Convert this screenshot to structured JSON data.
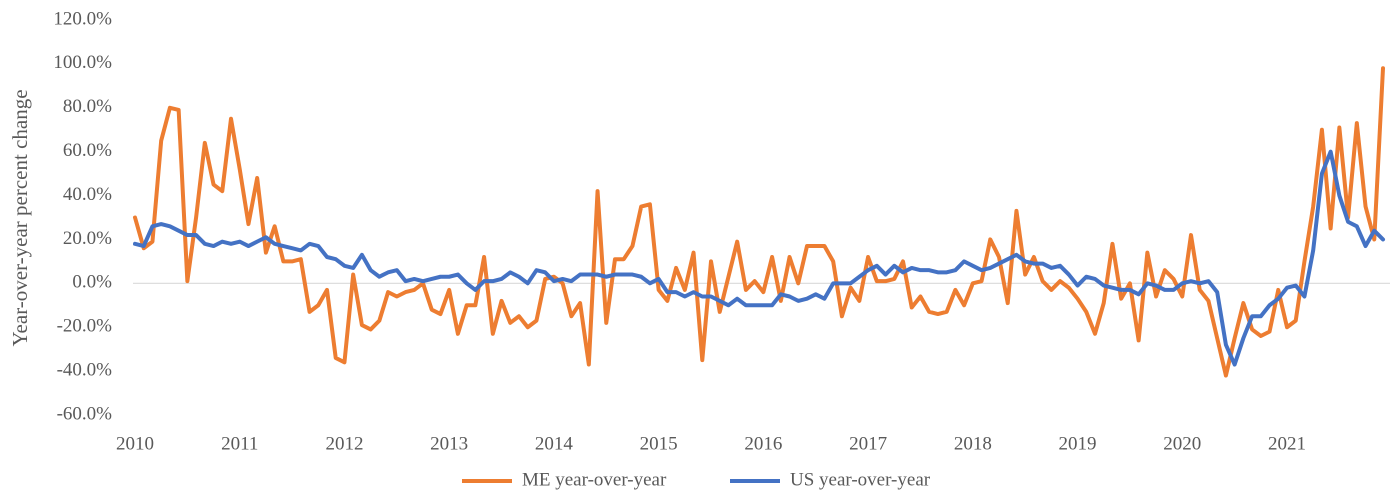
{
  "chart_data": {
    "type": "line",
    "y_label": "Year-over-year percent change",
    "categories": [
      "2010",
      null,
      null,
      null,
      null,
      null,
      null,
      null,
      null,
      null,
      null,
      null,
      "2011",
      null,
      null,
      null,
      null,
      null,
      null,
      null,
      null,
      null,
      null,
      null,
      "2012",
      null,
      null,
      null,
      null,
      null,
      null,
      null,
      null,
      null,
      null,
      null,
      "2013",
      null,
      null,
      null,
      null,
      null,
      null,
      null,
      null,
      null,
      null,
      null,
      "2014",
      null,
      null,
      null,
      null,
      null,
      null,
      null,
      null,
      null,
      null,
      null,
      "2015",
      null,
      null,
      null,
      null,
      null,
      null,
      null,
      null,
      null,
      null,
      null,
      "2016",
      null,
      null,
      null,
      null,
      null,
      null,
      null,
      null,
      null,
      null,
      null,
      "2017",
      null,
      null,
      null,
      null,
      null,
      null,
      null,
      null,
      null,
      null,
      null,
      "2018",
      null,
      null,
      null,
      null,
      null,
      null,
      null,
      null,
      null,
      null,
      null,
      "2019",
      null,
      null,
      null,
      null,
      null,
      null,
      null,
      null,
      null,
      null,
      null,
      "2020",
      null,
      null,
      null,
      null,
      null,
      null,
      null,
      null,
      null,
      null,
      null,
      "2021",
      null,
      null,
      null,
      null,
      null,
      null,
      null,
      null,
      null,
      null,
      null
    ],
    "series": [
      {
        "name": "ME year-over-year",
        "color": "#ED7D31",
        "values": [
          30,
          16,
          19,
          65,
          80,
          79,
          1,
          30,
          64,
          45,
          42,
          75,
          52,
          27,
          48,
          14,
          26,
          10,
          10,
          11,
          -13,
          -10,
          -3,
          -34,
          -36,
          4,
          -19,
          -21,
          -17,
          -4,
          -6,
          -4,
          -3,
          0,
          -12,
          -14,
          -3,
          -23,
          -10,
          -10,
          12,
          -23,
          -8,
          -18,
          -15,
          -20,
          -17,
          2,
          3,
          0,
          -15,
          -9,
          -37,
          42,
          -18,
          11,
          11,
          17,
          35,
          36,
          -3,
          -8,
          7,
          -3,
          14,
          -35,
          10,
          -13,
          3,
          19,
          -3,
          1,
          -4,
          12,
          -8,
          12,
          0,
          17,
          17,
          17,
          10,
          -15,
          -2,
          -8,
          12,
          1,
          1,
          2,
          10,
          -11,
          -6,
          -13,
          -14,
          -13,
          -3,
          -10,
          0,
          1,
          20,
          12,
          -9,
          33,
          4,
          12,
          1,
          -3,
          1,
          -2,
          -7,
          -13,
          -23,
          -9,
          18,
          -7,
          0,
          -26,
          14,
          -6,
          6,
          2,
          -6,
          22,
          -3,
          -8,
          -25,
          -42,
          -25,
          -9,
          -21,
          -24,
          -22,
          -3,
          -20,
          -17,
          10,
          35,
          70,
          25,
          71,
          30,
          73,
          35,
          20,
          98
        ]
      },
      {
        "name": "US year-over-year",
        "color": "#4472C4",
        "values": [
          18,
          17,
          26,
          27,
          26,
          24,
          22,
          22,
          18,
          17,
          19,
          18,
          19,
          17,
          19,
          21,
          18,
          17,
          16,
          15,
          18,
          17,
          12,
          11,
          8,
          7,
          13,
          6,
          3,
          5,
          6,
          1,
          2,
          1,
          2,
          3,
          3,
          4,
          0,
          -3,
          1,
          1,
          2,
          5,
          3,
          0,
          6,
          5,
          1,
          2,
          1,
          4,
          4,
          4,
          3,
          4,
          4,
          4,
          3,
          0,
          2,
          -4,
          -4,
          -6,
          -4,
          -6,
          -6,
          -8,
          -10,
          -7,
          -10,
          -10,
          -10,
          -10,
          -5,
          -6,
          -8,
          -7,
          -5,
          -7,
          0,
          0,
          0,
          3,
          6,
          8,
          4,
          8,
          5,
          7,
          6,
          6,
          5,
          5,
          6,
          10,
          8,
          6,
          7,
          9,
          11,
          13,
          10,
          9,
          9,
          7,
          8,
          4,
          -1,
          3,
          2,
          -1,
          -2,
          -3,
          -3,
          -5,
          0,
          -1,
          -3,
          -3,
          0,
          1,
          0,
          1,
          -4,
          -28,
          -37,
          -25,
          -15,
          -15,
          -10,
          -7,
          -2,
          -1,
          -6,
          15,
          50,
          60,
          40,
          28,
          26,
          17,
          24,
          20
        ]
      }
    ],
    "ylim": [
      -60,
      120
    ],
    "yticks": [
      {
        "value": -60,
        "label": "-60.0%"
      },
      {
        "value": -40,
        "label": "-40.0%"
      },
      {
        "value": -20,
        "label": "-20.0%"
      },
      {
        "value": 0,
        "label": "0.0%"
      },
      {
        "value": 20,
        "label": "20.0%"
      },
      {
        "value": 40,
        "label": "40.0%"
      },
      {
        "value": 60,
        "label": "60.0%"
      },
      {
        "value": 80,
        "label": "80.0%"
      },
      {
        "value": 100,
        "label": "100.0%"
      },
      {
        "value": 120,
        "label": "120.0%"
      }
    ],
    "grid": false,
    "legend": "bottom"
  }
}
